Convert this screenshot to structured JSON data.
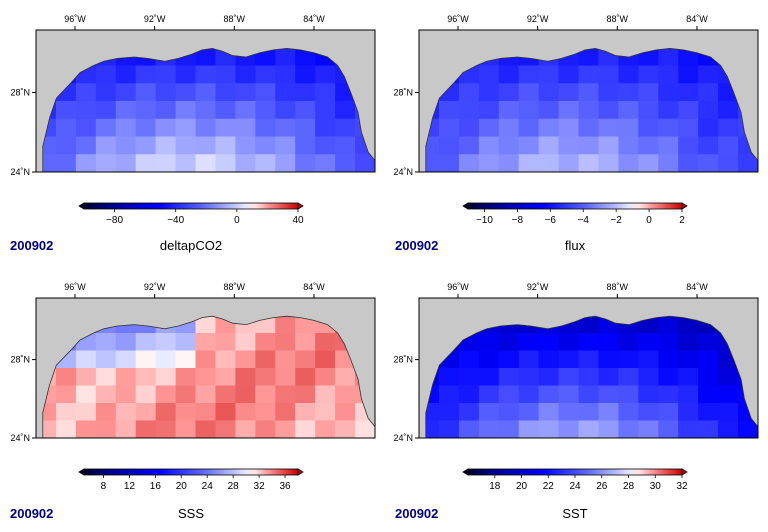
{
  "colors": {
    "land": "#c8c8c8",
    "frame": "#000000",
    "date_text": "#00007a"
  },
  "axes": {
    "lon_labels": [
      "96˚W",
      "92˚W",
      "88˚W",
      "84˚W"
    ],
    "lat_labels": [
      "28˚N",
      "24˚N"
    ]
  },
  "panels": [
    {
      "id": "deltapco2",
      "variable": "deltapCO2",
      "date": "200902",
      "colorbar": {
        "range": [
          -100,
          40
        ],
        "ticks": [
          "−80",
          "−40",
          "0",
          "40"
        ],
        "tick_values": [
          -80,
          -40,
          0,
          40
        ],
        "colormap": "blue-white-red diverging"
      }
    },
    {
      "id": "flux",
      "variable": "flux",
      "date": "200902",
      "colorbar": {
        "range": [
          -11,
          2
        ],
        "ticks": [
          "−10",
          "−8",
          "−6",
          "−4",
          "−2",
          "0",
          "2"
        ],
        "tick_values": [
          -10,
          -8,
          -6,
          -4,
          -2,
          0,
          2
        ],
        "colormap": "blue-white-red diverging"
      }
    },
    {
      "id": "sss",
      "variable": "SSS",
      "date": "200902",
      "colorbar": {
        "range": [
          5,
          38
        ],
        "ticks": [
          "8",
          "12",
          "16",
          "20",
          "24",
          "28",
          "32",
          "36"
        ],
        "tick_values": [
          8,
          12,
          16,
          20,
          24,
          28,
          32,
          36
        ],
        "colormap": "blue-white-red diverging"
      }
    },
    {
      "id": "sst",
      "variable": "SST",
      "date": "200902",
      "colorbar": {
        "range": [
          16,
          32
        ],
        "ticks": [
          "18",
          "20",
          "22",
          "24",
          "26",
          "28",
          "30",
          "32"
        ],
        "tick_values": [
          18,
          20,
          22,
          24,
          26,
          28,
          30,
          32
        ],
        "colormap": "blue-white-red diverging"
      }
    }
  ]
}
